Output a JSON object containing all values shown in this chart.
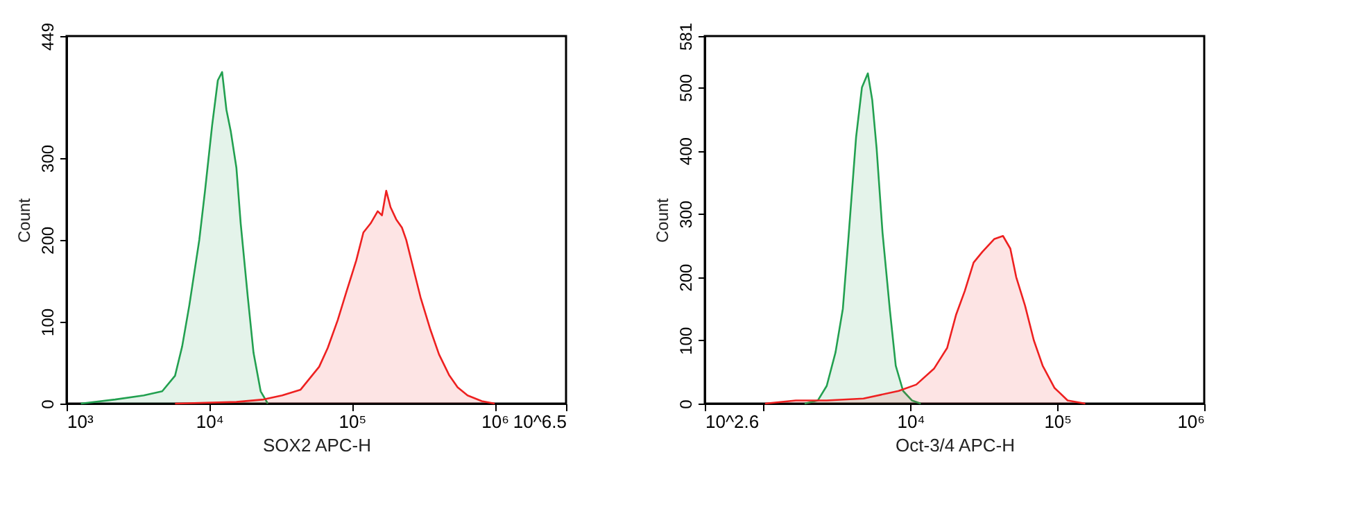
{
  "chart_data": [
    {
      "type": "area",
      "xlabel": "SOX2 APC-H",
      "ylabel": "Count",
      "log": "x",
      "grid": false,
      "legend": false,
      "xlim": [
        1000,
        3162278
      ],
      "ylim": [
        0,
        449
      ],
      "xticks": [
        {
          "value": 1000,
          "label": "10³"
        },
        {
          "value": 10000,
          "label": "10⁴"
        },
        {
          "value": 100000,
          "label": "10⁵"
        },
        {
          "value": 1000000,
          "label": "10⁶"
        },
        {
          "value": 3162278,
          "label": "10^6.5"
        }
      ],
      "yticks": [
        0,
        100,
        200,
        300,
        449
      ],
      "series": [
        {
          "color": "#22a050",
          "x": [
            1259,
            2188,
            3467,
            4677,
            5754,
            6457,
            7244,
            8511,
            9333,
            10470,
            11480,
            12300,
            13180,
            14130,
            15490,
            16600,
            18620,
            20420,
            22910,
            25700
          ],
          "values": [
            0,
            5,
            10,
            15,
            34,
            70,
            120,
            200,
            260,
            340,
            395,
            405,
            359,
            333,
            288,
            220,
            130,
            62,
            15,
            0
          ]
        },
        {
          "color": "#ee2020",
          "x": [
            5754,
            15490,
            23990,
            32360,
            43650,
            58880,
            67610,
            79430,
            91200,
            107200,
            120200,
            134900,
            151400,
            162200,
            173800,
            186200,
            204200,
            223900,
            239900,
            275400,
            302000,
            354800,
            407400,
            478600,
            549500,
            645700,
            812800,
            1000000
          ],
          "values": [
            0,
            2,
            5,
            10,
            17,
            45,
            68,
            102,
            136,
            175,
            209,
            220,
            235,
            230,
            260,
            240,
            225,
            215,
            200,
            158,
            130,
            90,
            60,
            35,
            20,
            10,
            3,
            0
          ]
        }
      ]
    },
    {
      "type": "area",
      "xlabel": "Oct-3/4 APC-H",
      "ylabel": "Count",
      "log": "x",
      "grid": false,
      "legend": false,
      "xlim": [
        398.1,
        1000000
      ],
      "ylim": [
        0,
        581
      ],
      "xticks": [
        {
          "value": 398.1,
          "label": "10^2.6"
        },
        {
          "value": 1000,
          "label": null
        },
        {
          "value": 10000,
          "label": "10⁴"
        },
        {
          "value": 100000,
          "label": "10⁵"
        },
        {
          "value": 1000000,
          "label": "10⁶"
        }
      ],
      "yticks": [
        0,
        100,
        200,
        300,
        400,
        500,
        581
      ],
      "series": [
        {
          "color": "#22a050",
          "x": [
            1905,
            2344,
            2692,
            3090,
            3467,
            3802,
            4266,
            4677,
            5129,
            5495,
            5888,
            6457,
            7244,
            7943,
            8913,
            10230,
            11750
          ],
          "values": [
            0,
            5,
            28,
            81,
            150,
            268,
            421,
            500,
            522,
            480,
            403,
            270,
            148,
            60,
            20,
            5,
            0
          ]
        },
        {
          "color": "#ee2020",
          "x": [
            1023,
            1660,
            2692,
            4786,
            8318,
            10960,
            14450,
            17780,
            20420,
            23440,
            26920,
            30900,
            37150,
            42660,
            47860,
            52480,
            60260,
            69180,
            79430,
            95500,
            117500,
            154900
          ],
          "values": [
            0,
            5,
            5,
            8,
            20,
            30,
            55,
            88,
            140,
            178,
            223,
            240,
            260,
            265,
            245,
            200,
            155,
            100,
            60,
            25,
            5,
            0
          ]
        }
      ]
    }
  ]
}
